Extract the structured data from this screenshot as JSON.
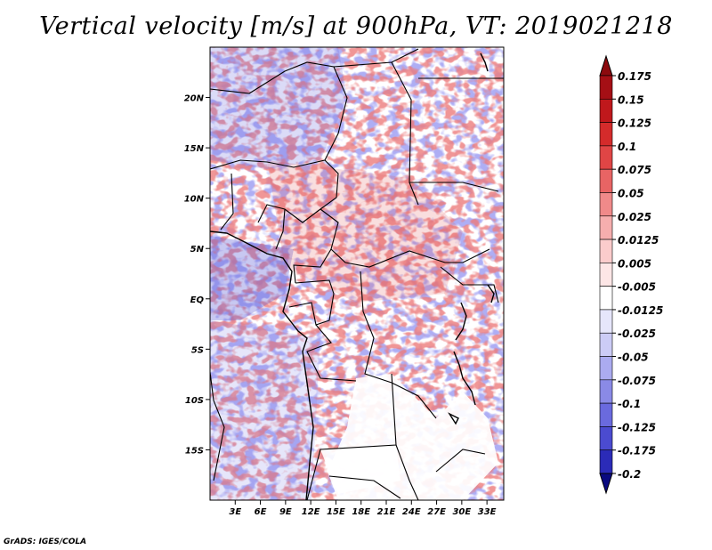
{
  "title": "Vertical velocity [m/s] at 900hPa, VT: 2019021218",
  "credit": "GrADS: IGES/COLA",
  "map": {
    "lon_range": [
      0,
      35
    ],
    "lat_range": [
      -20,
      25
    ],
    "lat_ticks": [
      {
        "value": 20,
        "label": "20N"
      },
      {
        "value": 15,
        "label": "15N"
      },
      {
        "value": 10,
        "label": "10N"
      },
      {
        "value": 5,
        "label": "5N"
      },
      {
        "value": 0,
        "label": "EQ"
      },
      {
        "value": -5,
        "label": "5S"
      },
      {
        "value": -10,
        "label": "10S"
      },
      {
        "value": -15,
        "label": "15S"
      }
    ],
    "lon_ticks": [
      {
        "value": 3,
        "label": "3E"
      },
      {
        "value": 6,
        "label": "6E"
      },
      {
        "value": 9,
        "label": "9E"
      },
      {
        "value": 12,
        "label": "12E"
      },
      {
        "value": 15,
        "label": "15E"
      },
      {
        "value": 18,
        "label": "18E"
      },
      {
        "value": 21,
        "label": "21E"
      },
      {
        "value": 24,
        "label": "24E"
      },
      {
        "value": 27,
        "label": "27E"
      },
      {
        "value": 30,
        "label": "30E"
      },
      {
        "value": 33,
        "label": "33E"
      }
    ]
  },
  "colorbar": {
    "entries": [
      {
        "label": "0.175",
        "color": "#a50f15"
      },
      {
        "label": "0.15",
        "color": "#c0181c"
      },
      {
        "label": "0.125",
        "color": "#d42b2b"
      },
      {
        "label": "0.1",
        "color": "#e04545"
      },
      {
        "label": "0.075",
        "color": "#e86464"
      },
      {
        "label": "0.05",
        "color": "#f08a8a"
      },
      {
        "label": "0.025",
        "color": "#f6aeae"
      },
      {
        "label": "0.0125",
        "color": "#fbcccc"
      },
      {
        "label": "0.005",
        "color": "#fde6e6"
      },
      {
        "label": "-0.005",
        "color": "#ffffff"
      },
      {
        "label": "-0.0125",
        "color": "#e6e6fb"
      },
      {
        "label": "-0.025",
        "color": "#ccccf6"
      },
      {
        "label": "-0.05",
        "color": "#ababf0"
      },
      {
        "label": "-0.075",
        "color": "#8a8ae6"
      },
      {
        "label": "-0.1",
        "color": "#6a6ade"
      },
      {
        "label": "-0.125",
        "color": "#4b4bd0"
      },
      {
        "label": "-0.175",
        "color": "#2b2bb8"
      },
      {
        "label": "-0.2",
        "color": "#15159c"
      }
    ],
    "top_color": "#8c0a0e",
    "bottom_color": "#0a0a80"
  }
}
